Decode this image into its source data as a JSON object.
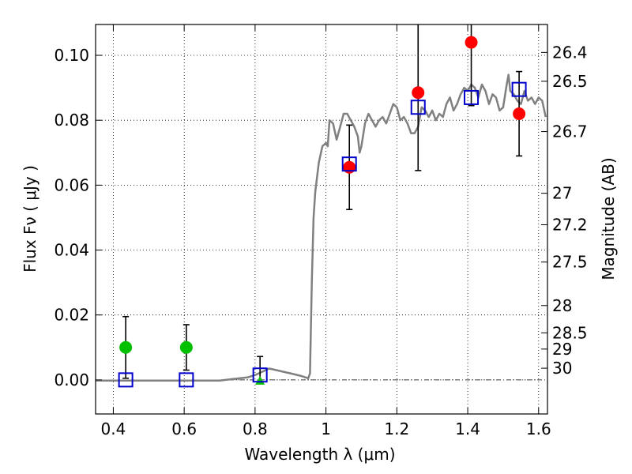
{
  "chart_data": {
    "type": "scatter",
    "xlabel": "Wavelength  λ (μm)",
    "ylabel": "Flux  Fν  ( μJy )",
    "y2label": "Magnitude (AB)",
    "xlim": [
      0.35,
      1.625
    ],
    "ylim": [
      -0.0105,
      0.1095
    ],
    "grid": true,
    "x_ticks": [
      {
        "value": 0.4,
        "label": "0.4"
      },
      {
        "value": 0.6,
        "label": "0.6"
      },
      {
        "value": 0.8,
        "label": "0.8"
      },
      {
        "value": 1.0,
        "label": "1"
      },
      {
        "value": 1.2,
        "label": "1.2"
      },
      {
        "value": 1.4,
        "label": "1.4"
      },
      {
        "value": 1.6,
        "label": "1.6"
      }
    ],
    "y_ticks": [
      {
        "value": 0.0,
        "label": "0.00"
      },
      {
        "value": 0.02,
        "label": "0.02"
      },
      {
        "value": 0.04,
        "label": "0.04"
      },
      {
        "value": 0.06,
        "label": "0.06"
      },
      {
        "value": 0.08,
        "label": "0.08"
      },
      {
        "value": 0.1,
        "label": "0.10"
      }
    ],
    "mag_ticks": [
      {
        "flux": 0.1009,
        "label": "26.4"
      },
      {
        "flux": 0.092,
        "label": "26.5"
      },
      {
        "flux": 0.0765,
        "label": "26.7"
      },
      {
        "flux": 0.0575,
        "label": "27"
      },
      {
        "flux": 0.0478,
        "label": "27.2"
      },
      {
        "flux": 0.0363,
        "label": "27.5"
      },
      {
        "flux": 0.0229,
        "label": "28"
      },
      {
        "flux": 0.0145,
        "label": "28.5"
      },
      {
        "flux": 0.0095,
        "label": "29"
      },
      {
        "flux": 0.0036,
        "label": "30"
      }
    ],
    "series": [
      {
        "style": "line",
        "color": "#808080",
        "points": [
          [
            0.35,
            -0.0002
          ],
          [
            0.5,
            -0.0002
          ],
          [
            0.7,
            -0.0002
          ],
          [
            0.74,
            0.0003
          ],
          [
            0.78,
            0.0008
          ],
          [
            0.8,
            0.0015
          ],
          [
            0.82,
            0.0025
          ],
          [
            0.84,
            0.0035
          ],
          [
            0.86,
            0.003
          ],
          [
            0.88,
            0.0025
          ],
          [
            0.9,
            0.002
          ],
          [
            0.93,
            0.0012
          ],
          [
            0.95,
            0.0005
          ],
          [
            0.955,
            0.002
          ],
          [
            0.96,
            0.03
          ],
          [
            0.965,
            0.05
          ],
          [
            0.97,
            0.058
          ],
          [
            0.98,
            0.067
          ],
          [
            0.99,
            0.072
          ],
          [
            1.0,
            0.073
          ],
          [
            1.005,
            0.072
          ],
          [
            1.01,
            0.08
          ],
          [
            1.02,
            0.079
          ],
          [
            1.03,
            0.074
          ],
          [
            1.04,
            0.078
          ],
          [
            1.05,
            0.082
          ],
          [
            1.06,
            0.082
          ],
          [
            1.07,
            0.08
          ],
          [
            1.08,
            0.078
          ],
          [
            1.09,
            0.075
          ],
          [
            1.095,
            0.07
          ],
          [
            1.1,
            0.072
          ],
          [
            1.11,
            0.079
          ],
          [
            1.12,
            0.082
          ],
          [
            1.13,
            0.08
          ],
          [
            1.14,
            0.078
          ],
          [
            1.15,
            0.08
          ],
          [
            1.16,
            0.081
          ],
          [
            1.17,
            0.079
          ],
          [
            1.18,
            0.082
          ],
          [
            1.19,
            0.085
          ],
          [
            1.2,
            0.084
          ],
          [
            1.21,
            0.08
          ],
          [
            1.22,
            0.081
          ],
          [
            1.23,
            0.079
          ],
          [
            1.24,
            0.076
          ],
          [
            1.25,
            0.076
          ],
          [
            1.26,
            0.078
          ],
          [
            1.27,
            0.084
          ],
          [
            1.28,
            0.083
          ],
          [
            1.29,
            0.081
          ],
          [
            1.3,
            0.083
          ],
          [
            1.31,
            0.08
          ],
          [
            1.32,
            0.082
          ],
          [
            1.33,
            0.081
          ],
          [
            1.34,
            0.085
          ],
          [
            1.35,
            0.087
          ],
          [
            1.36,
            0.083
          ],
          [
            1.37,
            0.085
          ],
          [
            1.38,
            0.088
          ],
          [
            1.39,
            0.09
          ],
          [
            1.4,
            0.089
          ],
          [
            1.41,
            0.091
          ],
          [
            1.42,
            0.09
          ],
          [
            1.43,
            0.087
          ],
          [
            1.44,
            0.091
          ],
          [
            1.45,
            0.089
          ],
          [
            1.46,
            0.085
          ],
          [
            1.47,
            0.088
          ],
          [
            1.48,
            0.087
          ],
          [
            1.49,
            0.083
          ],
          [
            1.5,
            0.084
          ],
          [
            1.51,
            0.091
          ],
          [
            1.515,
            0.094
          ],
          [
            1.52,
            0.089
          ],
          [
            1.53,
            0.088
          ],
          [
            1.54,
            0.086
          ],
          [
            1.55,
            0.085
          ],
          [
            1.56,
            0.089
          ],
          [
            1.57,
            0.086
          ],
          [
            1.58,
            0.087
          ],
          [
            1.59,
            0.085
          ],
          [
            1.6,
            0.087
          ],
          [
            1.61,
            0.086
          ],
          [
            1.62,
            0.081
          ]
        ]
      },
      {
        "style": "points",
        "marker": "circle",
        "color": "#00c000",
        "points": [
          {
            "x": 0.435,
            "y": 0.01,
            "yerr_low": 0.0095,
            "yerr_high": 0.0095
          },
          {
            "x": 0.606,
            "y": 0.01,
            "yerr_low": 0.007,
            "yerr_high": 0.007
          }
        ]
      },
      {
        "style": "points",
        "marker": "triangle",
        "color": "#00c000",
        "points": [
          {
            "x": 0.814,
            "y": -0.0005,
            "yerr_low": 0.0,
            "yerr_high": 0.0077
          }
        ]
      },
      {
        "style": "points",
        "marker": "circle",
        "color": "#ff0000",
        "points": [
          {
            "x": 1.066,
            "y": 0.0655,
            "yerr_low": 0.013,
            "yerr_high": 0.013
          },
          {
            "x": 1.26,
            "y": 0.0885,
            "yerr_low": 0.024,
            "yerr_high": 0.024
          },
          {
            "x": 1.41,
            "y": 0.104,
            "yerr_low": 0.0195,
            "yerr_high": 0.0195
          },
          {
            "x": 1.545,
            "y": 0.082,
            "yerr_low": 0.013,
            "yerr_high": 0.013
          }
        ]
      },
      {
        "style": "points",
        "marker": "square-open",
        "color": "#0000cc",
        "points": [
          {
            "x": 0.435,
            "y": 0.0
          },
          {
            "x": 0.606,
            "y": 0.0
          },
          {
            "x": 0.814,
            "y": 0.0015
          },
          {
            "x": 1.066,
            "y": 0.0665
          },
          {
            "x": 1.26,
            "y": 0.084
          },
          {
            "x": 1.41,
            "y": 0.087
          },
          {
            "x": 1.545,
            "y": 0.0895
          }
        ]
      }
    ],
    "reference_line": {
      "y": 0.0,
      "style": "dashdot",
      "color": "#000000"
    }
  }
}
